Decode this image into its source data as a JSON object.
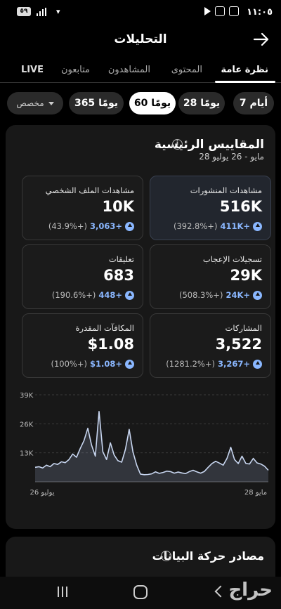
{
  "status_bar": {
    "time": "١١:٠٥",
    "battery": "٥٩"
  },
  "header": {
    "title": "التحليلات"
  },
  "tabs": [
    {
      "label": "نظرة عامة",
      "active": true
    },
    {
      "label": "المحتوى",
      "active": false
    },
    {
      "label": "المشاهدون",
      "active": false
    },
    {
      "label": "متابعون",
      "active": false
    },
    {
      "label": "LIVE",
      "active": false
    }
  ],
  "range_chips": [
    {
      "label": "7 أيام",
      "active": false
    },
    {
      "label": "28 يومًا",
      "active": false
    },
    {
      "label": "60 يومًا",
      "active": true
    },
    {
      "label": "365 يومًا",
      "active": false
    },
    {
      "label": "مخصص",
      "active": false
    }
  ],
  "key_metrics": {
    "title": "المقاييس الرئيسية",
    "date_range": "28 مايو - 26 يوليو",
    "cards": [
      {
        "label": "مشاهدات المنشورات",
        "value": "516K",
        "delta": "411K+",
        "pct": "(392.8%+)"
      },
      {
        "label": "مشاهدات الملف الشخصي",
        "value": "10K",
        "delta": "3,063+",
        "pct": "(43.9%+)"
      },
      {
        "label": "تسجيلات الإعجاب",
        "value": "29K",
        "delta": "24K+",
        "pct": "(508.3%+)"
      },
      {
        "label": "تعليقات",
        "value": "683",
        "delta": "448+",
        "pct": "(190.6%+)"
      },
      {
        "label": "المشاركات",
        "value": "3,522",
        "delta": "3,267+",
        "pct": "(1281.2%+)"
      },
      {
        "label": "المكافآت المقدرة",
        "value": "$1.08",
        "delta": "$1.08+",
        "pct": "(100%+)"
      }
    ]
  },
  "chart_data": {
    "type": "line",
    "series": [
      {
        "values": [
          6500,
          6800,
          6200,
          7500,
          6800,
          8200,
          7800,
          9000,
          8600,
          10000,
          12500,
          11000,
          15000,
          18500,
          24000,
          16500,
          11500,
          31500,
          13500,
          10000,
          17500,
          12000,
          9500,
          8800,
          14500,
          23500,
          13500,
          7500,
          3500,
          3200,
          3300,
          3600,
          4500,
          3800,
          4200,
          4800,
          4600,
          3900,
          4400,
          4000,
          3700,
          4600,
          5200,
          4500,
          3900,
          4700,
          6500,
          8200,
          9200,
          8400,
          7500,
          10500,
          15500,
          10000,
          8200,
          11500,
          8300,
          8000,
          10500,
          8500,
          8000,
          7000,
          5200
        ]
      }
    ],
    "yticks": [
      "39K",
      "26K",
      "13K"
    ],
    "ylim": [
      0,
      39000
    ],
    "xtick_labels": [
      "28 مايو",
      "26 يوليو"
    ],
    "grid": true
  },
  "traffic_sources": {
    "title": "مصادر حركة البيانات"
  },
  "watermark": "حراج",
  "colors": {
    "accent": "#8ab7ff",
    "background": "#000000",
    "panel": "#181818"
  }
}
